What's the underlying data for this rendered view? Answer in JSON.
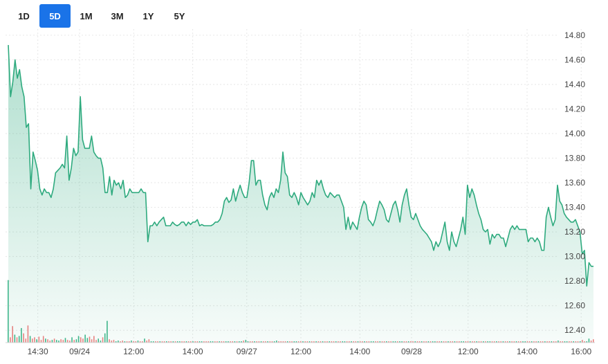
{
  "range_selector": {
    "options": [
      "1D",
      "5D",
      "1M",
      "3M",
      "1Y",
      "5Y"
    ],
    "selected": "5D"
  },
  "colors": {
    "line": "#2eaa7e",
    "area_top": "#2eaa7e",
    "volume_up": "#3fb68b",
    "volume_down": "#f08080",
    "active_button": "#1a73e8"
  },
  "chart_data": {
    "type": "area",
    "title": "",
    "xlabel": "",
    "ylabel": "",
    "ylim": [
      12.3,
      14.85
    ],
    "y_ticks": [
      "14.80",
      "14.60",
      "14.40",
      "14.20",
      "14.00",
      "13.80",
      "13.60",
      "13.40",
      "13.20",
      "13.00",
      "12.80",
      "12.60",
      "12.40"
    ],
    "x_ticks": [
      "14:30",
      "09/24",
      "12:00",
      "14:00",
      "09/27",
      "12:00",
      "14:00",
      "09/28",
      "12:00",
      "14:00",
      "16:00"
    ],
    "x_tick_positions": [
      6,
      14.5,
      25.5,
      37.5,
      48.5,
      59.5,
      71.5,
      82,
      93.5,
      105.5,
      116.5
    ],
    "x_range": [
      0,
      119
    ],
    "grid": true,
    "series": [
      {
        "values": [
          14.72,
          14.3,
          14.42,
          14.6,
          14.45,
          14.52,
          14.38,
          14.3,
          14.05,
          14.08,
          13.55,
          13.85,
          13.78,
          13.7,
          13.55,
          13.5,
          13.55,
          13.52,
          13.52,
          13.48,
          13.55,
          13.68,
          13.7,
          13.72,
          13.75,
          13.72,
          13.98,
          13.62,
          13.72,
          13.88,
          13.82,
          13.85,
          14.3,
          13.95,
          13.88,
          13.88,
          13.88,
          13.98,
          13.85,
          13.82,
          13.8,
          13.8,
          13.72,
          13.52,
          13.52,
          13.65,
          13.5,
          13.62,
          13.58,
          13.6,
          13.55,
          13.62,
          13.48,
          13.5,
          13.55,
          13.52,
          13.52,
          13.52,
          13.52,
          13.55,
          13.52,
          13.52,
          13.12,
          13.25,
          13.25,
          13.28,
          13.25,
          13.28,
          13.3,
          13.32,
          13.25,
          13.25,
          13.25,
          13.28,
          13.26,
          13.25,
          13.26,
          13.28,
          13.28,
          13.25,
          13.28,
          13.26,
          13.28,
          13.28,
          13.3,
          13.25,
          13.26,
          13.25,
          13.25,
          13.25,
          13.25,
          13.26,
          13.28,
          13.28,
          13.3,
          13.35,
          13.45,
          13.48,
          13.44,
          13.46,
          13.55,
          13.45,
          13.52,
          13.58,
          13.52,
          13.48,
          13.48,
          13.6,
          13.78,
          13.78,
          13.58,
          13.62,
          13.62,
          13.5,
          13.42,
          13.38,
          13.48,
          13.52,
          13.48,
          13.55,
          13.52,
          13.62,
          13.85,
          13.68,
          13.65,
          13.5,
          13.48,
          13.52,
          13.48,
          13.42,
          13.52,
          13.48,
          13.45,
          13.42,
          13.45,
          13.52,
          13.48,
          13.62,
          13.58,
          13.62,
          13.55,
          13.5,
          13.48,
          13.52,
          13.5,
          13.48,
          13.5,
          13.5,
          13.45,
          13.4,
          13.22,
          13.32,
          13.22,
          13.28,
          13.25,
          13.22,
          13.32,
          13.4,
          13.45,
          13.42,
          13.3,
          13.28,
          13.25,
          13.3,
          13.38,
          13.45,
          13.42,
          13.38,
          13.3,
          13.28,
          13.35,
          13.42,
          13.45,
          13.38,
          13.28,
          13.42,
          13.5,
          13.55,
          13.42,
          13.32,
          13.3,
          13.35,
          13.3,
          13.25,
          13.22,
          13.2,
          13.18,
          13.15,
          13.12,
          13.05,
          13.12,
          13.08,
          13.12,
          13.2,
          13.28,
          13.12,
          13.05,
          13.2,
          13.12,
          13.08,
          13.15,
          13.22,
          13.32,
          13.18,
          13.58,
          13.48,
          13.55,
          13.5,
          13.42,
          13.35,
          13.3,
          13.22,
          13.2,
          13.22,
          13.1,
          13.18,
          13.15,
          13.18,
          13.18,
          13.15,
          13.15,
          13.08,
          13.15,
          13.22,
          13.25,
          13.22,
          13.25,
          13.22,
          13.22,
          13.22,
          13.22,
          13.12,
          13.15,
          13.15,
          13.12,
          13.15,
          13.12,
          13.05,
          13.05,
          13.32,
          13.4,
          13.32,
          13.25,
          13.3,
          13.58,
          13.45,
          13.42,
          13.35,
          13.32,
          13.3,
          13.28,
          13.28,
          13.3,
          13.25,
          13.2,
          13.02,
          13.05,
          12.76,
          12.95,
          12.92,
          12.92
        ]
      }
    ],
    "volume": {
      "values": [
        0.95,
        0.08,
        0.25,
        0.12,
        0.08,
        0.1,
        0.22,
        0.14,
        0.06,
        0.26,
        0.1,
        0.06,
        0.08,
        0.05,
        0.09,
        0.04,
        0.1,
        0.06,
        0.05,
        0.03,
        0.04,
        0.06,
        0.04,
        0.03,
        0.05,
        0.04,
        0.07,
        0.04,
        0.03,
        0.08,
        0.04,
        0.05,
        0.1,
        0.08,
        0.06,
        0.12,
        0.07,
        0.09,
        0.05,
        0.1,
        0.04,
        0.06,
        0.03,
        0.08,
        0.14,
        0.33,
        0.05,
        0.03,
        0.04,
        0.02,
        0.03,
        0.02,
        0.03,
        0.02,
        0.02,
        0.02,
        0.03,
        0.02,
        0.02,
        0.03,
        0.02,
        0.02,
        0.06,
        0.03,
        0.05,
        0.02,
        0.02,
        0.02,
        0.02,
        0.02,
        0.02,
        0.02,
        0.02,
        0.02,
        0.02,
        0.02,
        0.02,
        0.02,
        0.02,
        0.02,
        0.02,
        0.02,
        0.02,
        0.02,
        0.02,
        0.02,
        0.02,
        0.02,
        0.02,
        0.02,
        0.02,
        0.02,
        0.02,
        0.02,
        0.02,
        0.02,
        0.02,
        0.02,
        0.02,
        0.02,
        0.02,
        0.02,
        0.02,
        0.02,
        0.02,
        0.02,
        0.02,
        0.03,
        0.04,
        0.02,
        0.02,
        0.02,
        0.02,
        0.02,
        0.02,
        0.02,
        0.02,
        0.02,
        0.02,
        0.02,
        0.02,
        0.02,
        0.03,
        0.02,
        0.02,
        0.02,
        0.02,
        0.02,
        0.02,
        0.02,
        0.02,
        0.02,
        0.02,
        0.02,
        0.02,
        0.02,
        0.02,
        0.02,
        0.02,
        0.02,
        0.02,
        0.02,
        0.02,
        0.02,
        0.02,
        0.02,
        0.02,
        0.02,
        0.02,
        0.02,
        0.02,
        0.02,
        0.02,
        0.02,
        0.02,
        0.02,
        0.02,
        0.02,
        0.02,
        0.02,
        0.02,
        0.02,
        0.02,
        0.02,
        0.02,
        0.02,
        0.02,
        0.02,
        0.02,
        0.02,
        0.02,
        0.02,
        0.02,
        0.02,
        0.02,
        0.02,
        0.02,
        0.02,
        0.02,
        0.02,
        0.02,
        0.02,
        0.02,
        0.02,
        0.02,
        0.02,
        0.02,
        0.02,
        0.02,
        0.02,
        0.02,
        0.02,
        0.02,
        0.02,
        0.02,
        0.02,
        0.02,
        0.02,
        0.02,
        0.02,
        0.02,
        0.02,
        0.02,
        0.02,
        0.02,
        0.02,
        0.02,
        0.02,
        0.02,
        0.02,
        0.02,
        0.02,
        0.02,
        0.02,
        0.02,
        0.02,
        0.02,
        0.02,
        0.02,
        0.02,
        0.02,
        0.02,
        0.02,
        0.02,
        0.02,
        0.02,
        0.02,
        0.02,
        0.02,
        0.02,
        0.02,
        0.02,
        0.02,
        0.02,
        0.02,
        0.02,
        0.02,
        0.02,
        0.02,
        0.02,
        0.02,
        0.02,
        0.02,
        0.02,
        0.02,
        0.02,
        0.02,
        0.02,
        0.02,
        0.02,
        0.03,
        0.02,
        0.02,
        0.02,
        0.02,
        0.02,
        0.02,
        0.02,
        0.02,
        0.02,
        0.02,
        0.04,
        0.02,
        0.02,
        0.06,
        0.03,
        0.05
      ],
      "directions": "udduduuddduddudddudduduuddudduduudduudddduuduuddduudduddudduddudduudduddudduduudduddudduuddduuddudduudduduuduuddudduddudduuddddudduudduddudduddudduddudduuddudduddudduudduddudduuduuddudduddudduduuddudduddudduudduddudduduudduddudduddudduuddudduddudduddudduudduddudduudd"
    }
  }
}
